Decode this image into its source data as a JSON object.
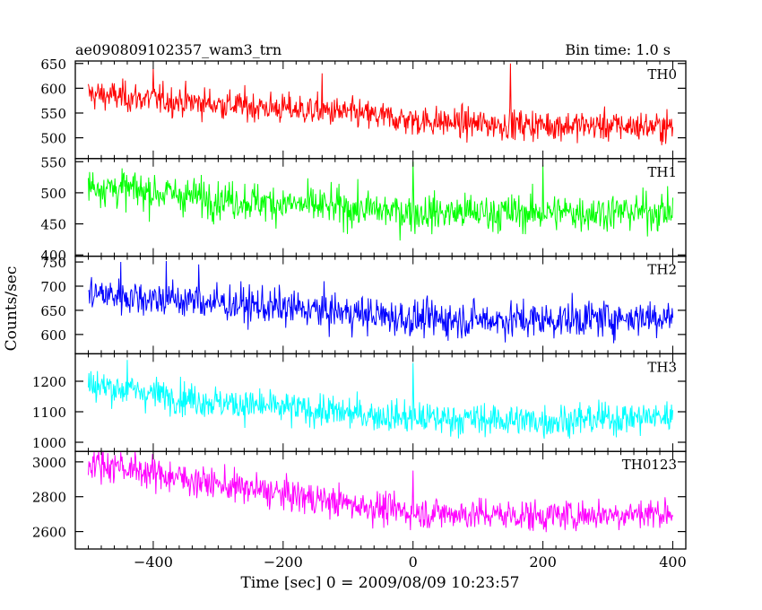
{
  "chart_data": {
    "type": "line",
    "title": "ae090809102357_wam3_trn",
    "bin_time_label": "Bin time: 1.0 s",
    "xlabel": "Time [sec] 0 = 2009/08/09 10:23:57",
    "ylabel": "Counts/sec",
    "xlim": [
      -520,
      420
    ],
    "x_ticks": [
      -400,
      -200,
      0,
      200,
      400
    ],
    "x_tick_labels": [
      "−400",
      "−200",
      "0",
      "200",
      "400"
    ],
    "x_range": [
      -500,
      400
    ],
    "panels": [
      {
        "name": "TH0",
        "color": "#ff0000",
        "ylim": [
          458,
          655
        ],
        "y_ticks": [
          500,
          550,
          600,
          650
        ],
        "trend": [
          [
            -500,
            588
          ],
          [
            -300,
            568
          ],
          [
            -100,
            550
          ],
          [
            0,
            535
          ],
          [
            100,
            528
          ],
          [
            250,
            525
          ],
          [
            400,
            522
          ]
        ],
        "noise": 24,
        "spikes": [
          [
            150,
            650
          ],
          [
            -400,
            640
          ],
          [
            -140,
            630
          ]
        ]
      },
      {
        "name": "TH1",
        "color": "#00ff00",
        "ylim": [
          398,
          555
        ],
        "y_ticks": [
          400,
          450,
          500,
          550
        ],
        "trend": [
          [
            -500,
            512
          ],
          [
            -300,
            490
          ],
          [
            -100,
            475
          ],
          [
            0,
            468
          ],
          [
            200,
            468
          ],
          [
            400,
            470
          ]
        ],
        "noise": 24,
        "spikes": [
          [
            0,
            550
          ],
          [
            200,
            545
          ]
        ]
      },
      {
        "name": "TH2",
        "color": "#0000ff",
        "ylim": [
          560,
          762
        ],
        "y_ticks": [
          600,
          650,
          700,
          750
        ],
        "trend": [
          [
            -500,
            685
          ],
          [
            -300,
            665
          ],
          [
            -100,
            645
          ],
          [
            0,
            632
          ],
          [
            200,
            630
          ],
          [
            400,
            638
          ]
        ],
        "noise": 30,
        "spikes": [
          [
            -450,
            750
          ],
          [
            -380,
            752
          ],
          [
            -330,
            745
          ]
        ]
      },
      {
        "name": "TH3",
        "color": "#00ffff",
        "ylim": [
          970,
          1290
        ],
        "y_ticks": [
          1000,
          1100,
          1200
        ],
        "trend": [
          [
            -500,
            1190
          ],
          [
            -300,
            1130
          ],
          [
            -100,
            1095
          ],
          [
            0,
            1080
          ],
          [
            200,
            1070
          ],
          [
            400,
            1085
          ]
        ],
        "noise": 42,
        "spikes": [
          [
            0,
            1260
          ],
          [
            -440,
            1270
          ]
        ]
      },
      {
        "name": "TH0123",
        "color": "#ff00ff",
        "ylim": [
          2500,
          3060
        ],
        "y_ticks": [
          2600,
          2800,
          3000
        ],
        "trend": [
          [
            -500,
            3000
          ],
          [
            -300,
            2870
          ],
          [
            -100,
            2760
          ],
          [
            0,
            2710
          ],
          [
            200,
            2690
          ],
          [
            400,
            2710
          ]
        ],
        "noise": 72,
        "spikes": [
          [
            0,
            2950
          ],
          [
            -450,
            3055
          ]
        ]
      }
    ]
  }
}
